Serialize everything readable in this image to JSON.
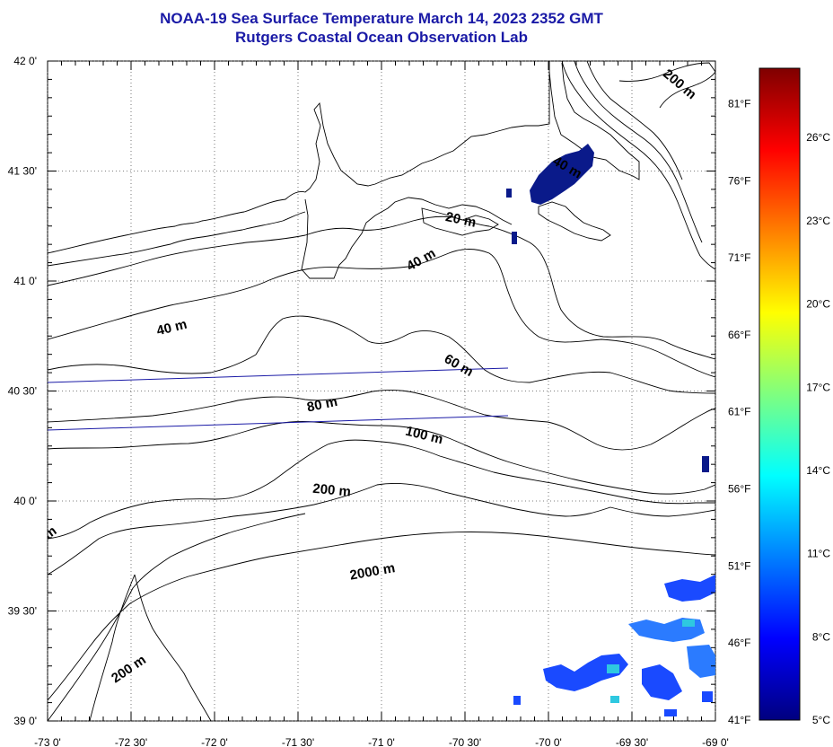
{
  "title": {
    "line1": "NOAA-19 Sea Surface Temperature March 14, 2023 2352 GMT",
    "line2": "Rutgers Coastal Ocean Observation Lab"
  },
  "map": {
    "lon_range": [
      -73,
      -69
    ],
    "lat_range": [
      39,
      42
    ],
    "lon_ticks": [
      {
        "value": -73.0,
        "label": "-73 0'"
      },
      {
        "value": -72.5,
        "label": "-72 30'"
      },
      {
        "value": -72.0,
        "label": "-72 0'"
      },
      {
        "value": -71.5,
        "label": "-71 30'"
      },
      {
        "value": -71.0,
        "label": "-71 0'"
      },
      {
        "value": -70.5,
        "label": "-70 30'"
      },
      {
        "value": -70.0,
        "label": "-70 0'"
      },
      {
        "value": -69.5,
        "label": "-69 30'"
      },
      {
        "value": -69.0,
        "label": "-69 0'"
      }
    ],
    "lat_ticks": [
      {
        "value": 42.0,
        "label": "42 0'"
      },
      {
        "value": 41.5,
        "label": "41 30'"
      },
      {
        "value": 41.0,
        "label": "41 0'"
      },
      {
        "value": 40.5,
        "label": "40 30'"
      },
      {
        "value": 40.0,
        "label": "40 0'"
      },
      {
        "value": 39.5,
        "label": "39 30'"
      },
      {
        "value": 39.0,
        "label": "39 0'"
      }
    ],
    "grid": true,
    "contour_labels": [
      {
        "text": "200 m",
        "lon": -69.23,
        "lat": 41.88,
        "angle": 40
      },
      {
        "text": "40 m",
        "lon": -69.9,
        "lat": 41.5,
        "angle": 30
      },
      {
        "text": "20 m",
        "lon": -70.53,
        "lat": 41.26,
        "angle": 12
      },
      {
        "text": "40 m",
        "lon": -70.75,
        "lat": 41.08,
        "angle": -30
      },
      {
        "text": "40 m",
        "lon": -72.25,
        "lat": 40.77,
        "angle": -14
      },
      {
        "text": "60 m",
        "lon": -70.55,
        "lat": 40.6,
        "angle": 30
      },
      {
        "text": "80 m",
        "lon": -71.35,
        "lat": 40.42,
        "angle": -12
      },
      {
        "text": "100 m",
        "lon": -70.75,
        "lat": 40.28,
        "angle": 14
      },
      {
        "text": "200 m",
        "lon": -71.3,
        "lat": 40.03,
        "angle": 5
      },
      {
        "text": "2000 m",
        "lon": -71.05,
        "lat": 39.66,
        "angle": -10
      },
      {
        "text": "200 m",
        "lon": -72.5,
        "lat": 39.22,
        "angle": -34
      },
      {
        "text": "m",
        "lon": -72.97,
        "lat": 39.84,
        "angle": -35
      }
    ]
  },
  "colorbar": {
    "colors": [
      "#00007f",
      "#0000ff",
      "#007fff",
      "#00ffff",
      "#7fff7f",
      "#ffff00",
      "#ff7f00",
      "#ff0000",
      "#7f0000"
    ],
    "celsius_labels": [
      {
        "value": 26,
        "label": "26°C"
      },
      {
        "value": 23,
        "label": "23°C"
      },
      {
        "value": 20,
        "label": "20°C"
      },
      {
        "value": 17,
        "label": "17°C"
      },
      {
        "value": 14,
        "label": "14°C"
      },
      {
        "value": 11,
        "label": "11°C"
      },
      {
        "value": 8,
        "label": "8°C"
      },
      {
        "value": 5,
        "label": "5°C"
      }
    ],
    "fahrenheit_labels": [
      {
        "value": 81,
        "label": "81°F"
      },
      {
        "value": 76,
        "label": "76°F"
      },
      {
        "value": 71,
        "label": "71°F"
      },
      {
        "value": 66,
        "label": "66°F"
      },
      {
        "value": 61,
        "label": "61°F"
      },
      {
        "value": 56,
        "label": "56°F"
      },
      {
        "value": 51,
        "label": "51°F"
      },
      {
        "value": 46,
        "label": "46°F"
      },
      {
        "value": 41,
        "label": "41°F"
      }
    ]
  }
}
